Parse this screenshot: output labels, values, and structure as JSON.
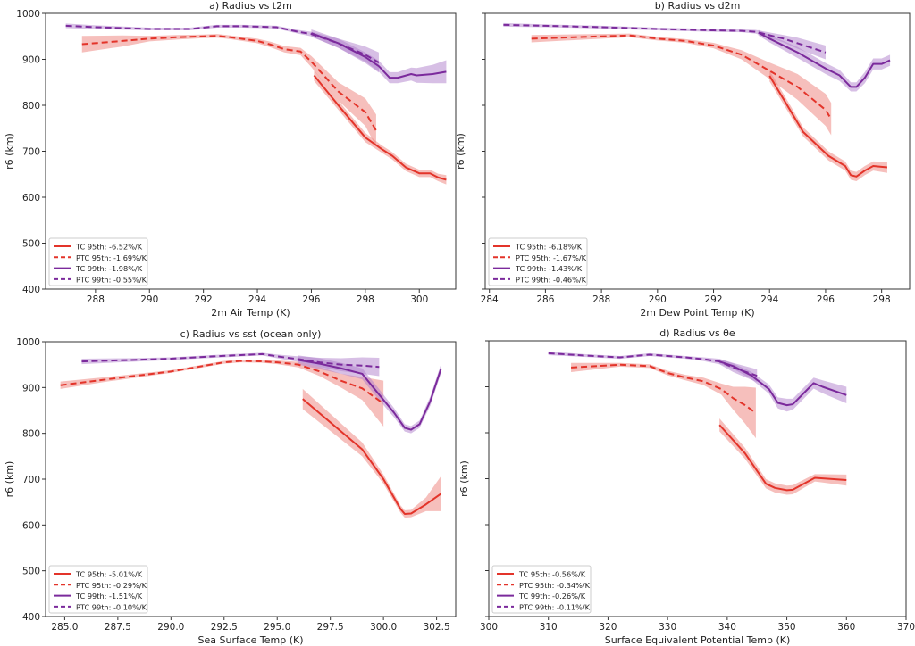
{
  "colors": {
    "tc95": "#e3342a",
    "ptc95": "#e3342a",
    "tc99": "#7b2a9c",
    "ptc99": "#7b2a9c",
    "band_red": "#ee7f7a",
    "band_purple": "#b07fcc"
  },
  "chart_data": [
    {
      "type": "line",
      "title": "a) Radius vs t2m",
      "xlabel": "2m Air Temp (K)",
      "ylabel": "r6 (km)",
      "xlim": [
        286.15,
        301.35
      ],
      "ylim": [
        400,
        1000
      ],
      "xticks": [
        288,
        290,
        292,
        294,
        296,
        298,
        300
      ],
      "xtick_labels": [
        "288",
        "290",
        "292",
        "294",
        "296",
        "298",
        "300"
      ],
      "yticks": [
        400,
        500,
        600,
        700,
        800,
        900,
        1000
      ],
      "ytick_labels": [
        "400",
        "500",
        "600",
        "700",
        "800",
        "900",
        "1000"
      ],
      "show_ytick_labels": true,
      "legend": "lower-left",
      "series": [
        {
          "name": "TC 95th: -6.52%/K",
          "key": "tc95",
          "dash": false,
          "x": [
            296.1,
            297,
            298,
            298.6,
            299,
            299.5,
            300,
            300.4,
            300.7,
            301
          ],
          "y": [
            865,
            800,
            730,
            705,
            690,
            665,
            652,
            652,
            643,
            638
          ],
          "band": [
            12,
            10,
            10,
            8,
            8,
            8,
            8,
            8,
            8,
            10
          ]
        },
        {
          "name": "PTC 95th: -1.69%/K",
          "key": "ptc95",
          "dash": true,
          "x": [
            287.5,
            289,
            290,
            291,
            292,
            292.5,
            293,
            294,
            294.5,
            295,
            295.6,
            296,
            297,
            298,
            298.4
          ],
          "y": [
            933,
            940,
            945,
            948,
            950,
            951,
            948,
            940,
            932,
            922,
            917,
            895,
            830,
            785,
            745
          ],
          "band": [
            18,
            12,
            6,
            5,
            4,
            4,
            4,
            5,
            6,
            7,
            8,
            12,
            20,
            30,
            35
          ]
        },
        {
          "name": "TC 99th: -1.98%/K",
          "key": "tc99",
          "dash": false,
          "x": [
            296,
            297,
            298,
            298.5,
            298.9,
            299.2,
            299.7,
            299.9,
            300.5,
            301
          ],
          "y": [
            957,
            935,
            905,
            885,
            860,
            860,
            868,
            865,
            868,
            873
          ],
          "band": [
            8,
            10,
            10,
            12,
            12,
            12,
            14,
            16,
            20,
            25
          ]
        },
        {
          "name": "PTC 99th: -0.55%/K",
          "key": "ptc99",
          "dash": true,
          "x": [
            286.9,
            288,
            290,
            291.5,
            292.5,
            293.5,
            294.7,
            295.5,
            296,
            297,
            298,
            298.5
          ],
          "y": [
            973,
            970,
            966,
            966,
            972,
            972,
            970,
            960,
            955,
            935,
            910,
            893
          ],
          "band": [
            5,
            4,
            3,
            3,
            3,
            3,
            3,
            4,
            5,
            10,
            18,
            22
          ]
        }
      ]
    },
    {
      "type": "line",
      "title": "b) Radius vs d2m",
      "xlabel": "2m Dew Point Temp (K)",
      "ylabel": "r6 (km)",
      "xlim": [
        283.85,
        299.0
      ],
      "ylim": [
        400,
        1000
      ],
      "xticks": [
        284,
        286,
        288,
        290,
        292,
        294,
        296,
        298
      ],
      "xtick_labels": [
        "284",
        "286",
        "288",
        "290",
        "292",
        "294",
        "296",
        "298"
      ],
      "yticks": [
        400,
        500,
        600,
        700,
        800,
        900,
        1000
      ],
      "ytick_labels": [
        "",
        "",
        "",
        "",
        "",
        "",
        ""
      ],
      "show_ytick_labels": false,
      "legend": "lower-left",
      "series": [
        {
          "name": "TC 95th: -6.18%/K",
          "key": "tc95",
          "dash": false,
          "x": [
            294,
            295.2,
            296.1,
            296.7,
            296.9,
            297.1,
            297.4,
            297.7,
            298.2
          ],
          "y": [
            864,
            742,
            690,
            668,
            648,
            645,
            658,
            668,
            665
          ],
          "band": [
            12,
            10,
            10,
            10,
            10,
            10,
            10,
            10,
            12
          ]
        },
        {
          "name": "PTC 95th: -1.67%/K",
          "key": "ptc95",
          "dash": true,
          "x": [
            285.5,
            288,
            289,
            290,
            291,
            292,
            293,
            294,
            295,
            296,
            296.2
          ],
          "y": [
            945,
            950,
            952,
            945,
            940,
            930,
            910,
            875,
            840,
            790,
            770
          ],
          "band": [
            8,
            5,
            4,
            4,
            4,
            6,
            10,
            18,
            28,
            35,
            35
          ]
        },
        {
          "name": "TC 99th: -1.43%/K",
          "key": "tc99",
          "dash": false,
          "x": [
            293.6,
            294,
            295,
            296,
            296.5,
            296.9,
            297.1,
            297.4,
            297.7,
            298,
            298.3
          ],
          "y": [
            958,
            945,
            915,
            880,
            865,
            840,
            840,
            860,
            890,
            890,
            898
          ],
          "band": [
            6,
            8,
            12,
            12,
            12,
            10,
            10,
            12,
            12,
            12,
            12
          ]
        },
        {
          "name": "PTC 99th: -0.46%/K",
          "key": "ptc99",
          "dash": true,
          "x": [
            284.5,
            286,
            288,
            290,
            292,
            293,
            293.5,
            294.5,
            295,
            296
          ],
          "y": [
            975,
            973,
            970,
            966,
            963,
            962,
            960,
            945,
            935,
            915
          ],
          "band": [
            4,
            3,
            3,
            3,
            3,
            3,
            4,
            8,
            12,
            15
          ]
        }
      ]
    },
    {
      "type": "line",
      "title": "c) Radius vs sst (ocean only)",
      "xlabel": "Sea Surface Temp (K)",
      "ylabel": "r6 (km)",
      "xlim": [
        284.1,
        303.4
      ],
      "ylim": [
        400,
        1000
      ],
      "xticks": [
        285,
        287.5,
        290,
        292.5,
        295,
        297.5,
        300,
        302.5
      ],
      "xtick_labels": [
        "285.0",
        "287.5",
        "290.0",
        "292.5",
        "295.0",
        "297.5",
        "300.0",
        "302.5"
      ],
      "yticks": [
        400,
        500,
        600,
        700,
        800,
        900,
        1000
      ],
      "ytick_labels": [
        "400",
        "500",
        "600",
        "700",
        "800",
        "900",
        "1000"
      ],
      "show_ytick_labels": true,
      "legend": "lower-left",
      "series": [
        {
          "name": "TC 95th: -5.01%/K",
          "key": "tc95",
          "dash": false,
          "x": [
            296.2,
            299,
            300,
            300.8,
            301,
            301.3,
            302,
            302.7
          ],
          "y": [
            875,
            765,
            700,
            635,
            624,
            625,
            645,
            668
          ],
          "band": [
            22,
            15,
            10,
            8,
            8,
            8,
            15,
            38
          ]
        },
        {
          "name": "PTC 95th: -0.29%/K",
          "key": "ptc95",
          "dash": true,
          "x": [
            284.8,
            287,
            290,
            292.5,
            293.3,
            294.3,
            295,
            296,
            297,
            298,
            299,
            300
          ],
          "y": [
            905,
            918,
            935,
            955,
            958,
            957,
            955,
            950,
            935,
            915,
            898,
            865
          ],
          "band": [
            8,
            5,
            3,
            3,
            3,
            3,
            4,
            6,
            10,
            15,
            25,
            50
          ]
        },
        {
          "name": "TC 99th: -1.51%/K",
          "key": "tc99",
          "dash": false,
          "x": [
            296,
            297,
            298,
            299,
            299.7,
            300.5,
            301,
            301.3,
            301.7,
            302.2,
            302.7
          ],
          "y": [
            960,
            952,
            942,
            930,
            890,
            845,
            812,
            808,
            820,
            870,
            940
          ],
          "band": [
            10,
            12,
            12,
            12,
            12,
            10,
            8,
            8,
            8,
            10,
            10
          ]
        },
        {
          "name": "PTC 99th: -0.10%/K",
          "key": "ptc99",
          "dash": true,
          "x": [
            285.8,
            288,
            290,
            292,
            294.3,
            295,
            296,
            297,
            298,
            299,
            299.8
          ],
          "y": [
            957,
            960,
            963,
            968,
            973,
            968,
            962,
            955,
            950,
            948,
            945
          ],
          "band": [
            6,
            4,
            3,
            3,
            3,
            4,
            6,
            10,
            14,
            18,
            20
          ]
        }
      ]
    },
    {
      "type": "line",
      "title": "d) Radius vs θe",
      "xlabel": "Surface Equivalent Potential Temp (K)",
      "ylabel": "r6 (km)",
      "xlim": [
        300,
        370
      ],
      "ylim": [
        400,
        1000
      ],
      "xticks": [
        300,
        310,
        320,
        330,
        340,
        350,
        360,
        370
      ],
      "xtick_labels": [
        "300",
        "310",
        "320",
        "330",
        "340",
        "350",
        "360",
        "370"
      ],
      "yticks": [
        400,
        500,
        600,
        700,
        800,
        900,
        1000
      ],
      "ytick_labels": [
        "",
        "",
        "",
        "",
        "",
        "",
        ""
      ],
      "show_ytick_labels": false,
      "legend": "lower-left",
      "series": [
        {
          "name": "TC 95th: -0.56%/K",
          "key": "tc95",
          "dash": false,
          "x": [
            338.7,
            343,
            346.5,
            348,
            350,
            351,
            354.7,
            360
          ],
          "y": [
            817,
            755,
            689,
            680,
            675,
            676,
            702,
            697
          ],
          "band": [
            14,
            12,
            10,
            10,
            10,
            10,
            8,
            12
          ]
        },
        {
          "name": "PTC 95th: -0.34%/K",
          "key": "ptc95",
          "dash": true,
          "x": [
            313.8,
            322,
            327,
            330,
            333,
            336,
            339,
            341,
            343,
            344.8
          ],
          "y": [
            942,
            948,
            945,
            930,
            920,
            912,
            895,
            875,
            860,
            843
          ],
          "band": [
            10,
            4,
            4,
            5,
            6,
            8,
            12,
            25,
            40,
            55
          ]
        },
        {
          "name": "TC 99th: -0.26%/K",
          "key": "tc99",
          "dash": false,
          "x": [
            338.7,
            341,
            344,
            347,
            348.5,
            350,
            351,
            354.5,
            356,
            360
          ],
          "y": [
            955,
            945,
            925,
            895,
            865,
            860,
            862,
            908,
            900,
            882
          ],
          "band": [
            5,
            6,
            8,
            10,
            12,
            14,
            12,
            12,
            14,
            18
          ]
        },
        {
          "name": "PTC 99th: -0.11%/K",
          "key": "ptc99",
          "dash": true,
          "x": [
            310,
            316,
            322,
            327,
            333,
            336,
            338.7,
            341,
            345
          ],
          "y": [
            973,
            968,
            964,
            970,
            964,
            960,
            955,
            942,
            924
          ],
          "band": [
            4,
            3,
            3,
            3,
            3,
            4,
            6,
            10,
            14
          ]
        }
      ]
    }
  ]
}
